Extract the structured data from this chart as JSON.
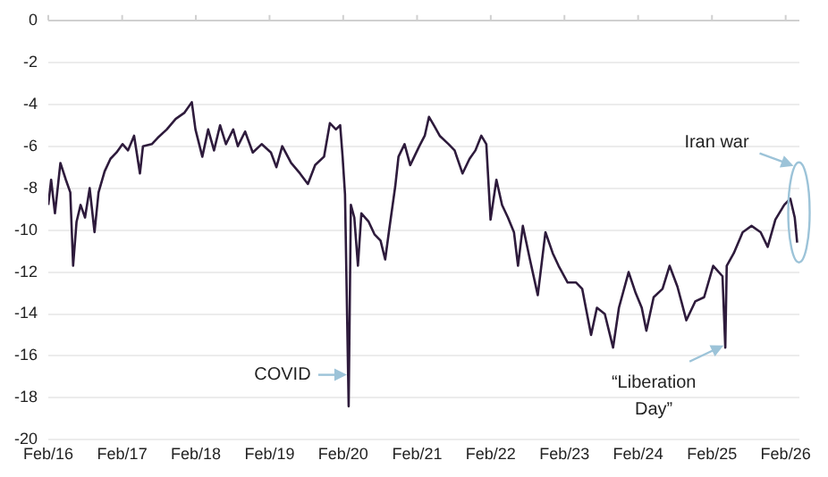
{
  "chart_data": {
    "type": "line",
    "grid": "y",
    "line_style": "solid",
    "marker": "none",
    "legend": false,
    "xlim": [
      "2016-02-01",
      "2026-04-10"
    ],
    "ylim": [
      -20,
      0
    ],
    "yticks": [
      -20,
      -18,
      -16,
      -14,
      -12,
      -10,
      -8,
      -6,
      -4,
      -2,
      0
    ],
    "xticks": [
      {
        "value": "2016-02-01",
        "label": "Feb/16"
      },
      {
        "value": "2017-02-01",
        "label": "Feb/17"
      },
      {
        "value": "2018-02-01",
        "label": "Feb/18"
      },
      {
        "value": "2019-02-01",
        "label": "Feb/19"
      },
      {
        "value": "2020-02-01",
        "label": "Feb/20"
      },
      {
        "value": "2021-02-01",
        "label": "Feb/21"
      },
      {
        "value": "2022-02-01",
        "label": "Feb/22"
      },
      {
        "value": "2023-02-01",
        "label": "Feb/23"
      },
      {
        "value": "2024-02-01",
        "label": "Feb/24"
      },
      {
        "value": "2025-02-01",
        "label": "Feb/25"
      },
      {
        "value": "2026-02-01",
        "label": "Feb/26"
      }
    ],
    "annotations": [
      {
        "text": "COVID",
        "x": "2020-02-28",
        "y": -16.9
      },
      {
        "text": "“Liberation Day”",
        "x": "2025-04-08",
        "y": -15.5
      },
      "Iran war"
    ],
    "series": [
      {
        "color": "#2e1b3c",
        "x": [
          "2016-02-01",
          "2016-02-15",
          "2016-03-05",
          "2016-04-01",
          "2016-04-28",
          "2016-05-20",
          "2016-06-03",
          "2016-06-20",
          "2016-07-10",
          "2016-08-01",
          "2016-08-24",
          "2016-09-17",
          "2016-10-07",
          "2016-11-06",
          "2016-12-05",
          "2017-01-04",
          "2017-02-03",
          "2017-03-02",
          "2017-04-01",
          "2017-04-30",
          "2017-05-15",
          "2017-06-28",
          "2017-07-27",
          "2017-09-10",
          "2017-10-24",
          "2017-12-07",
          "2018-01-12",
          "2018-01-30",
          "2018-03-05",
          "2018-04-03",
          "2018-05-02",
          "2018-06-01",
          "2018-06-30",
          "2018-08-05",
          "2018-08-28",
          "2018-10-03",
          "2018-11-10",
          "2018-12-24",
          "2019-02-08",
          "2019-03-07",
          "2019-04-05",
          "2019-05-19",
          "2019-07-02",
          "2019-08-10",
          "2019-09-15",
          "2019-10-29",
          "2019-11-27",
          "2019-12-27",
          "2020-01-17",
          "2020-01-29",
          "2020-02-10",
          "2020-02-28",
          "2020-03-10",
          "2020-03-27",
          "2020-04-14",
          "2020-05-01",
          "2020-06-06",
          "2020-07-05",
          "2020-08-04",
          "2020-08-27",
          "2020-09-17",
          "2020-10-16",
          "2020-11-01",
          "2020-12-01",
          "2020-12-29",
          "2021-02-12",
          "2021-03-11",
          "2021-04-01",
          "2021-04-25",
          "2021-05-24",
          "2021-07-07",
          "2021-08-06",
          "2021-09-14",
          "2021-10-19",
          "2021-11-17",
          "2021-12-16",
          "2022-01-10",
          "2022-01-31",
          "2022-03-01",
          "2022-03-29",
          "2022-04-27",
          "2022-05-27",
          "2022-06-16",
          "2022-07-10",
          "2022-08-14",
          "2022-09-22",
          "2022-10-30",
          "2022-12-05",
          "2023-01-03",
          "2023-02-17",
          "2023-03-31",
          "2023-04-30",
          "2023-06-13",
          "2023-07-12",
          "2023-08-20",
          "2023-09-30",
          "2023-10-29",
          "2023-12-16",
          "2024-01-20",
          "2024-02-19",
          "2024-03-13",
          "2024-04-18",
          "2024-06-01",
          "2024-07-06",
          "2024-08-14",
          "2024-09-27",
          "2024-11-10",
          "2024-12-24",
          "2025-02-07",
          "2025-03-25",
          "2025-04-08",
          "2025-04-15",
          "2025-05-20",
          "2025-07-03",
          "2025-08-16",
          "2025-09-30",
          "2025-11-04",
          "2025-12-12",
          "2026-01-25",
          "2026-02-24",
          "2026-03-18",
          "2026-03-30"
        ],
        "values": [
          -8.8,
          -7.6,
          -9.2,
          -6.8,
          -7.6,
          -8.2,
          -11.7,
          -9.6,
          -8.8,
          -9.4,
          -8.0,
          -10.1,
          -8.2,
          -7.2,
          -6.6,
          -6.3,
          -5.9,
          -6.2,
          -5.5,
          -7.3,
          -6.0,
          -5.9,
          -5.6,
          -5.2,
          -4.7,
          -4.4,
          -3.9,
          -5.2,
          -6.5,
          -5.2,
          -6.2,
          -5.0,
          -5.9,
          -5.2,
          -6.0,
          -5.3,
          -6.3,
          -5.9,
          -6.3,
          -7.0,
          -6.0,
          -6.8,
          -7.3,
          -7.8,
          -6.9,
          -6.5,
          -4.9,
          -5.2,
          -5.0,
          -6.5,
          -8.3,
          -18.4,
          -8.8,
          -9.4,
          -11.7,
          -9.2,
          -9.6,
          -10.2,
          -10.5,
          -11.4,
          -9.9,
          -7.9,
          -6.5,
          -5.9,
          -6.9,
          -6.0,
          -5.5,
          -4.6,
          -5.0,
          -5.5,
          -5.9,
          -6.2,
          -7.3,
          -6.6,
          -6.2,
          -5.5,
          -5.9,
          -9.5,
          -7.6,
          -8.8,
          -9.4,
          -10.1,
          -11.7,
          -9.8,
          -11.4,
          -13.1,
          -10.1,
          -11.1,
          -11.7,
          -12.5,
          -12.5,
          -12.8,
          -15.0,
          -13.7,
          -14.0,
          -15.6,
          -13.7,
          -12.0,
          -13.0,
          -13.7,
          -14.8,
          -13.2,
          -12.8,
          -11.7,
          -12.7,
          -14.3,
          -13.4,
          -13.2,
          -11.7,
          -12.2,
          -15.6,
          -11.7,
          -11.1,
          -10.1,
          -9.8,
          -10.1,
          -10.8,
          -9.5,
          -8.8,
          -8.5,
          -9.4,
          -10.6
        ]
      }
    ]
  }
}
